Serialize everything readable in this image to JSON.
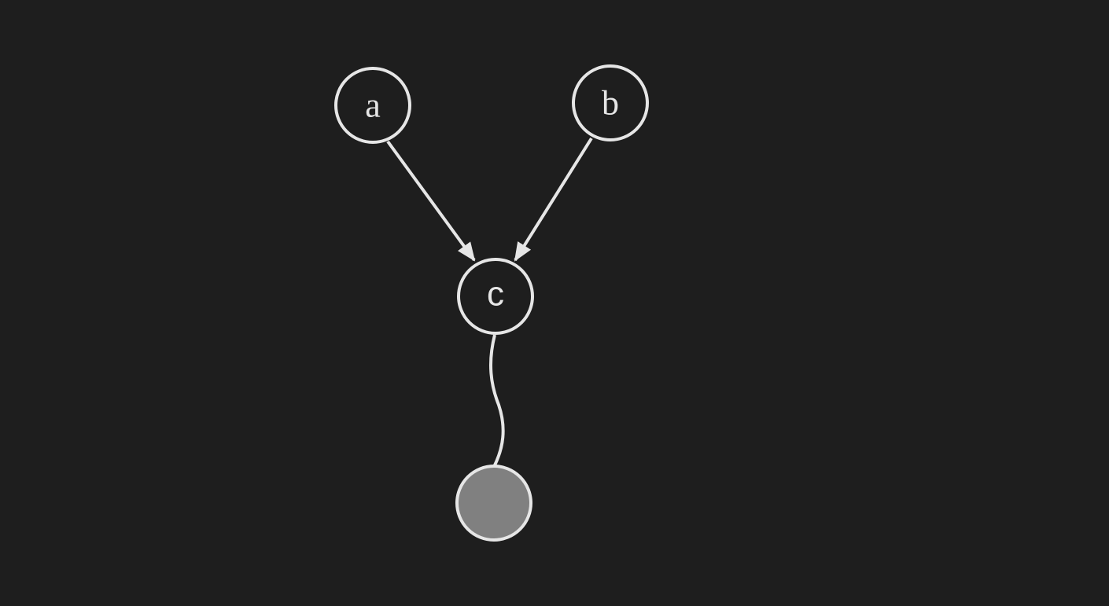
{
  "colors": {
    "background": "#1e1e1e",
    "stroke": "#e6e6e6",
    "node_fill": "#1e1e1e",
    "output_fill": "#808080",
    "text": "#e6e6e6"
  },
  "nodes": {
    "a": {
      "label": "a"
    },
    "b": {
      "label": "b"
    },
    "c": {
      "label": "c"
    },
    "output": {
      "label": ""
    }
  },
  "edges": [
    {
      "from": "a",
      "to": "c",
      "style": "arrow"
    },
    {
      "from": "b",
      "to": "c",
      "style": "arrow"
    },
    {
      "from": "c",
      "to": "output",
      "style": "wavy-line"
    }
  ]
}
